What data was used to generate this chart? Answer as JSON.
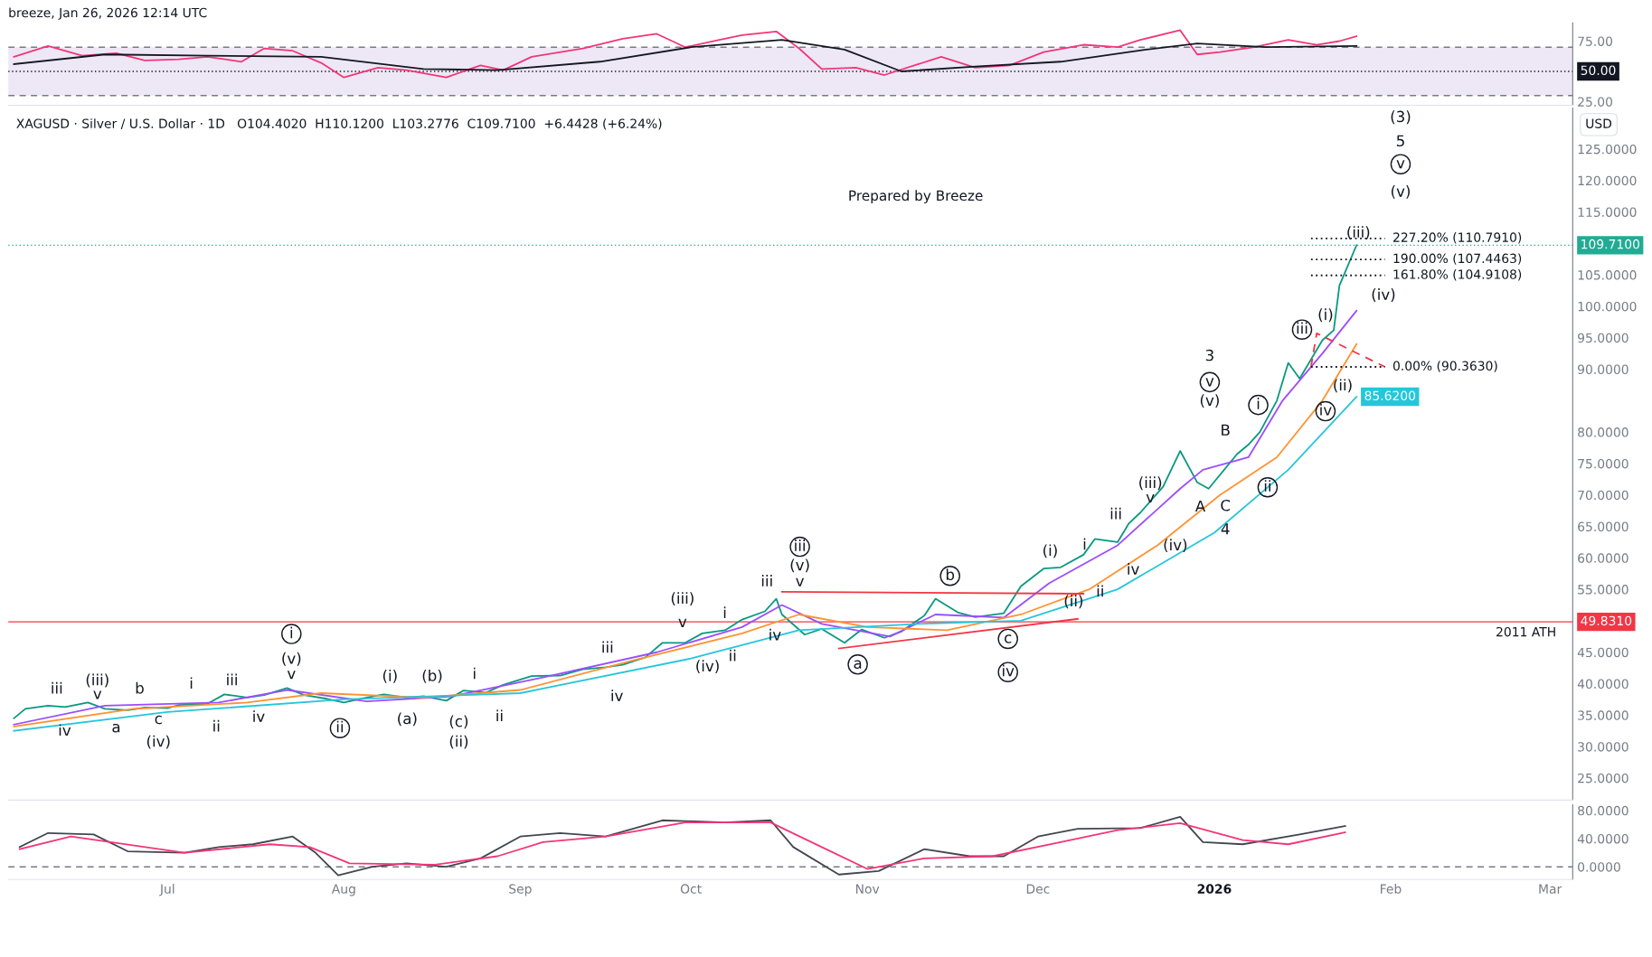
{
  "chart_data": [
    {
      "type": "line",
      "title": "breeze, Jan 26, 2026 12:14 UTC",
      "xlim": [
        "2025-06-03",
        "2026-03-05"
      ],
      "ylim": [
        22,
        90
      ],
      "yticks": [
        {
          "value": 25,
          "label": "25.00"
        },
        {
          "value": 75,
          "label": "75.00"
        }
      ],
      "tick_labels": "y",
      "grid": false,
      "legend": false,
      "bands": [
        {
          "axis": "y",
          "from": 30,
          "to": 70,
          "color": "#ede7f6"
        }
      ],
      "ref_lines": [
        {
          "axis": "y",
          "value": 70,
          "color": "#787b86",
          "line_style": "dashed"
        },
        {
          "axis": "y",
          "value": 30,
          "color": "#787b86",
          "line_style": "dashed"
        },
        {
          "axis": "y",
          "value": 50,
          "label": "50.00",
          "color": "#131722",
          "line_style": "dotted"
        }
      ],
      "series": [
        {
          "color": "#f23678",
          "x": [
            "2025-06-04",
            "2025-06-10",
            "2025-06-16",
            "2025-06-22",
            "2025-06-27",
            "2025-07-03",
            "2025-07-08",
            "2025-07-14",
            "2025-07-18",
            "2025-07-23",
            "2025-07-28",
            "2025-08-01",
            "2025-08-07",
            "2025-08-12",
            "2025-08-19",
            "2025-08-25",
            "2025-08-29",
            "2025-09-03",
            "2025-09-12",
            "2025-09-19",
            "2025-09-25",
            "2025-09-30",
            "2025-10-06",
            "2025-10-10",
            "2025-10-16",
            "2025-10-20",
            "2025-10-24",
            "2025-10-30",
            "2025-11-04",
            "2025-11-10",
            "2025-11-14",
            "2025-11-20",
            "2025-11-26",
            "2025-12-02",
            "2025-12-09",
            "2025-12-15",
            "2025-12-19",
            "2025-12-26",
            "2025-12-29",
            "2026-01-02",
            "2026-01-08",
            "2026-01-14",
            "2026-01-19",
            "2026-01-23",
            "2026-01-26"
          ],
          "values": [
            62,
            71,
            63,
            65,
            59,
            60,
            62,
            58,
            69,
            67,
            57,
            45,
            53,
            51,
            45,
            55,
            51,
            62,
            69,
            77,
            81,
            70,
            76,
            80,
            83,
            69,
            52,
            53,
            47,
            56,
            62,
            53,
            55,
            66,
            72,
            70,
            76,
            84,
            64,
            66,
            70,
            76,
            72,
            75,
            79
          ]
        },
        {
          "color": "#131722",
          "x": [
            "2025-06-04",
            "2025-06-20",
            "2025-07-08",
            "2025-07-28",
            "2025-08-15",
            "2025-08-28",
            "2025-09-15",
            "2025-10-01",
            "2025-10-17",
            "2025-10-28",
            "2025-11-07",
            "2025-11-20",
            "2025-12-05",
            "2025-12-20",
            "2025-12-29",
            "2026-01-10",
            "2026-01-26"
          ],
          "values": [
            56,
            64,
            63,
            62,
            52,
            51,
            58,
            70,
            76,
            68,
            50,
            54,
            58,
            68,
            73,
            70,
            71
          ]
        }
      ]
    },
    {
      "type": "line",
      "subtitle": "XAGUSD · Silver / U.S. Dollar · 1D   O104.4020  H110.1200  L103.2776  C109.7100  +6.4428 (+6.24%)",
      "ylabel": "USD",
      "xlim": [
        "2025-06-03",
        "2026-03-05"
      ],
      "ylim": [
        21.5,
        131.5
      ],
      "yticks": [
        {
          "value": 25,
          "label": "25.0000"
        },
        {
          "value": 30,
          "label": "30.0000"
        },
        {
          "value": 35,
          "label": "35.0000"
        },
        {
          "value": 40,
          "label": "40.0000"
        },
        {
          "value": 45,
          "label": "45.0000"
        },
        {
          "value": 55,
          "label": "55.0000"
        },
        {
          "value": 60,
          "label": "60.0000"
        },
        {
          "value": 65,
          "label": "65.0000"
        },
        {
          "value": 70,
          "label": "70.0000"
        },
        {
          "value": 75,
          "label": "75.0000"
        },
        {
          "value": 80,
          "label": "80.0000"
        },
        {
          "value": 90,
          "label": "90.0000"
        },
        {
          "value": 95,
          "label": "95.0000"
        },
        {
          "value": 100,
          "label": "100.0000"
        },
        {
          "value": 105,
          "label": "105.0000"
        },
        {
          "value": 115,
          "label": "115.0000"
        },
        {
          "value": 120,
          "label": "120.0000"
        },
        {
          "value": 125,
          "label": "125.0000"
        }
      ],
      "tick_labels": "y",
      "grid": false,
      "legend": false,
      "ref_lines": [
        {
          "axis": "y",
          "value": 109.71,
          "label": "109.7100",
          "color": "#22ab94",
          "line_style": "dotted"
        },
        {
          "axis": "y",
          "value": 49.831,
          "label": "49.8310",
          "color": "#f23645",
          "line_style": "solid"
        }
      ],
      "series": [
        {
          "type": "line",
          "color": "#089981",
          "x": [
            "2025-06-04",
            "2025-06-06",
            "2025-06-10",
            "2025-06-13",
            "2025-06-17",
            "2025-06-20",
            "2025-06-24",
            "2025-06-27",
            "2025-07-01",
            "2025-07-03",
            "2025-07-08",
            "2025-07-11",
            "2025-07-15",
            "2025-07-18",
            "2025-07-22",
            "2025-07-25",
            "2025-07-29",
            "2025-08-01",
            "2025-08-05",
            "2025-08-08",
            "2025-08-12",
            "2025-08-15",
            "2025-08-19",
            "2025-08-22",
            "2025-08-26",
            "2025-08-29",
            "2025-09-03",
            "2025-09-08",
            "2025-09-12",
            "2025-09-16",
            "2025-09-19",
            "2025-09-23",
            "2025-09-26",
            "2025-09-30",
            "2025-10-03",
            "2025-10-07",
            "2025-10-10",
            "2025-10-14",
            "2025-10-16",
            "2025-10-17",
            "2025-10-21",
            "2025-10-24",
            "2025-10-28",
            "2025-10-31",
            "2025-11-04",
            "2025-11-07",
            "2025-11-11",
            "2025-11-13",
            "2025-11-17",
            "2025-11-20",
            "2025-11-25",
            "2025-11-28",
            "2025-12-02",
            "2025-12-05",
            "2025-12-09",
            "2025-12-11",
            "2025-12-15",
            "2025-12-17",
            "2025-12-19",
            "2025-12-23",
            "2025-12-26",
            "2025-12-29",
            "2025-12-31",
            "2026-01-05",
            "2026-01-07",
            "2026-01-09",
            "2026-01-12",
            "2026-01-14",
            "2026-01-16",
            "2026-01-20",
            "2026-01-22",
            "2026-01-23",
            "2026-01-26"
          ],
          "values": [
            34.5,
            36.0,
            36.5,
            36.3,
            37.0,
            36.0,
            35.8,
            36.2,
            36.1,
            36.6,
            36.8,
            38.3,
            37.8,
            38.2,
            39.3,
            38.2,
            37.6,
            37.0,
            37.8,
            38.3,
            37.8,
            38.0,
            37.3,
            38.9,
            38.6,
            39.8,
            41.2,
            41.3,
            42.3,
            42.6,
            43.0,
            44.2,
            46.5,
            46.5,
            48.0,
            48.5,
            50.2,
            51.5,
            53.5,
            51.0,
            47.8,
            48.7,
            46.5,
            48.6,
            47.3,
            48.3,
            50.8,
            53.5,
            51.3,
            50.6,
            51.2,
            55.5,
            58.3,
            58.5,
            60.5,
            63.0,
            62.5,
            65.5,
            67.2,
            71.3,
            77.0,
            72.0,
            71.0,
            76.5,
            78.0,
            80.0,
            85.0,
            91.0,
            88.5,
            94.6,
            96.2,
            103.3,
            109.71
          ]
        },
        {
          "type": "line",
          "color": "#9c4dff",
          "x": [
            "2025-06-04",
            "2025-06-20",
            "2025-07-10",
            "2025-07-22",
            "2025-08-05",
            "2025-08-20",
            "2025-09-05",
            "2025-09-25",
            "2025-10-10",
            "2025-10-17",
            "2025-10-24",
            "2025-11-05",
            "2025-11-13",
            "2025-11-25",
            "2025-12-03",
            "2025-12-15",
            "2025-12-26",
            "2025-12-30",
            "2026-01-07",
            "2026-01-13",
            "2026-01-20",
            "2026-01-26"
          ],
          "values": [
            33.5,
            36.5,
            37,
            39,
            37.2,
            38,
            41,
            45,
            49,
            52.5,
            49.5,
            47.5,
            51,
            50.5,
            56,
            62,
            71,
            74,
            76,
            85,
            92.5,
            99.3
          ]
        },
        {
          "type": "line",
          "color": "#ff9332",
          "x": [
            "2025-06-04",
            "2025-06-25",
            "2025-07-15",
            "2025-07-28",
            "2025-08-15",
            "2025-09-01",
            "2025-09-20",
            "2025-10-10",
            "2025-10-20",
            "2025-11-01",
            "2025-11-15",
            "2025-11-28",
            "2025-12-10",
            "2025-12-22",
            "2026-01-02",
            "2026-01-12",
            "2026-01-20",
            "2026-01-26"
          ],
          "values": [
            33.2,
            36,
            37,
            38.5,
            37.8,
            39,
            43.5,
            48,
            51,
            49,
            48.5,
            51,
            55,
            62,
            70,
            76,
            85,
            94
          ]
        },
        {
          "type": "line",
          "color": "#26c6da",
          "x": [
            "2025-06-04",
            "2025-07-01",
            "2025-08-01",
            "2025-09-01",
            "2025-10-01",
            "2025-10-20",
            "2025-11-10",
            "2025-11-28",
            "2025-12-15",
            "2026-01-01",
            "2026-01-14",
            "2026-01-26"
          ],
          "values": [
            32.5,
            35.5,
            37.5,
            38.5,
            44,
            48.5,
            49.5,
            50,
            55,
            64,
            74,
            85.62
          ],
          "value_labels": [
            null,
            null,
            null,
            null,
            null,
            null,
            null,
            null,
            null,
            null,
            null,
            "85.6200"
          ]
        },
        {
          "type": "line",
          "color": "#f23645",
          "line_style": "solid",
          "x": [
            "2025-10-17",
            "2025-12-09"
          ],
          "values": [
            54.6,
            54.3
          ]
        },
        {
          "type": "line",
          "color": "#f23645",
          "line_style": "solid",
          "x": [
            "2025-10-27",
            "2025-12-08"
          ],
          "values": [
            45.6,
            50.3
          ]
        },
        {
          "type": "line",
          "color": "#f23645",
          "line_style": "dashed",
          "x": [
            "2026-01-18",
            "2026-01-19",
            "2026-01-31"
          ],
          "values": [
            90.4,
            95.7,
            90.363
          ]
        },
        {
          "type": "line",
          "color": "#131722",
          "line_style": "dotted",
          "x": [
            "2026-01-18",
            "2026-01-31"
          ],
          "values": [
            110.791,
            110.791
          ]
        },
        {
          "type": "line",
          "color": "#131722",
          "line_style": "dotted",
          "x": [
            "2026-01-18",
            "2026-01-31"
          ],
          "values": [
            107.4463,
            107.4463
          ]
        },
        {
          "type": "line",
          "color": "#131722",
          "line_style": "dotted",
          "x": [
            "2026-01-18",
            "2026-01-31"
          ],
          "values": [
            104.9108,
            104.9108
          ]
        },
        {
          "type": "line",
          "color": "#131722",
          "line_style": "dotted",
          "x": [
            "2026-01-18",
            "2026-01-31"
          ],
          "values": [
            90.363,
            90.363
          ]
        }
      ],
      "annotations": [
        "Prepared by Breeze",
        "iii",
        "iv",
        "(iii)",
        "v",
        "a",
        "b",
        "c",
        "(iv)",
        "i",
        "ii",
        "iii",
        "iv",
        "i",
        "(v)",
        "v",
        "ii",
        "(i)",
        "(a)",
        "(b)",
        "(c)",
        "(ii)",
        "i",
        "ii",
        "iii",
        "iv",
        "(iii)",
        "v",
        "(iv)",
        "i",
        "ii",
        "iii",
        "iv",
        "iii",
        "(v)",
        "v",
        "a",
        "b",
        "c",
        "iv",
        "(i)",
        "(ii)",
        "i",
        "ii",
        "iii",
        "iv",
        "(iii)",
        "v",
        "(iv)",
        "A",
        "3",
        "v",
        "(v)",
        "B",
        "C",
        "4",
        "i",
        "ii",
        "iii",
        "(i)",
        "iv",
        "(ii)",
        "(iii)",
        "(iv)",
        "(3)",
        "5",
        "v",
        "(v)",
        {
          "text": "227.20% (110.7910)",
          "x": "2026-01-31",
          "y": 110.791
        },
        {
          "text": "190.00% (107.4463)",
          "x": "2026-01-31",
          "y": 107.4463
        },
        {
          "text": "161.80% (104.9108)",
          "x": "2026-01-31",
          "y": 104.9108
        },
        {
          "text": "0.00% (90.3630)",
          "x": "2026-01-31",
          "y": 90.363
        },
        {
          "text": "2011 ATH",
          "x": "2026-03-03",
          "y": 49.831
        }
      ]
    },
    {
      "type": "line",
      "xlim": [
        "2025-06-03",
        "2026-03-05"
      ],
      "ylim": [
        -18,
        88
      ],
      "yticks": [
        {
          "value": 0,
          "label": "0.0000"
        },
        {
          "value": 40,
          "label": "40.0000"
        },
        {
          "value": 80,
          "label": "80.0000"
        }
      ],
      "xticks": [
        {
          "value": "2025-07-01",
          "label": "Jul"
        },
        {
          "value": "2025-08-01",
          "label": "Aug"
        },
        {
          "value": "2025-09-01",
          "label": "Sep"
        },
        {
          "value": "2025-10-01",
          "label": "Oct"
        },
        {
          "value": "2025-11-01",
          "label": "Nov"
        },
        {
          "value": "2025-12-01",
          "label": "Dec"
        },
        {
          "value": "2026-01-01",
          "label": "2026"
        },
        {
          "value": "2026-02-01",
          "label": "Feb"
        },
        {
          "value": "2026-03-01",
          "label": "Mar"
        }
      ],
      "grid": false,
      "legend": false,
      "ref_lines": [
        {
          "axis": "y",
          "value": 0,
          "color": "#787b86",
          "line_style": "dashed"
        }
      ],
      "series": [
        {
          "color": "#434651",
          "x": [
            "2025-06-05",
            "2025-06-10",
            "2025-06-18",
            "2025-06-24",
            "2025-07-04",
            "2025-07-10",
            "2025-07-16",
            "2025-07-23",
            "2025-07-27",
            "2025-07-31",
            "2025-08-06",
            "2025-08-12",
            "2025-08-19",
            "2025-08-25",
            "2025-09-01",
            "2025-09-08",
            "2025-09-16",
            "2025-09-26",
            "2025-10-07",
            "2025-10-15",
            "2025-10-19",
            "2025-10-27",
            "2025-11-03",
            "2025-11-11",
            "2025-11-19",
            "2025-11-25",
            "2025-12-01",
            "2025-12-08",
            "2025-12-19",
            "2025-12-26",
            "2025-12-30",
            "2026-01-06",
            "2026-01-16",
            "2026-01-24"
          ],
          "values": [
            28,
            48,
            46,
            22,
            20,
            28,
            32,
            43,
            20,
            -12,
            0,
            5,
            0,
            12,
            43,
            48,
            43,
            66,
            63,
            66,
            28,
            -11,
            -6,
            25,
            15,
            15,
            43,
            54,
            55,
            71,
            35,
            32,
            46,
            58
          ]
        },
        {
          "color": "#f23678",
          "x": [
            "2025-06-05",
            "2025-06-14",
            "2025-06-21",
            "2025-07-04",
            "2025-07-19",
            "2025-07-26",
            "2025-08-02",
            "2025-08-17",
            "2025-08-28",
            "2025-09-05",
            "2025-09-16",
            "2025-09-30",
            "2025-10-15",
            "2025-10-24",
            "2025-11-01",
            "2025-11-11",
            "2025-11-23",
            "2025-12-05",
            "2025-12-15",
            "2025-12-26",
            "2026-01-06",
            "2026-01-14",
            "2026-01-24"
          ],
          "values": [
            25,
            43,
            35,
            20,
            32,
            28,
            5,
            3,
            15,
            35,
            43,
            63,
            63,
            28,
            -3,
            12,
            15,
            35,
            52,
            62,
            38,
            32,
            49
          ]
        }
      ]
    }
  ]
}
